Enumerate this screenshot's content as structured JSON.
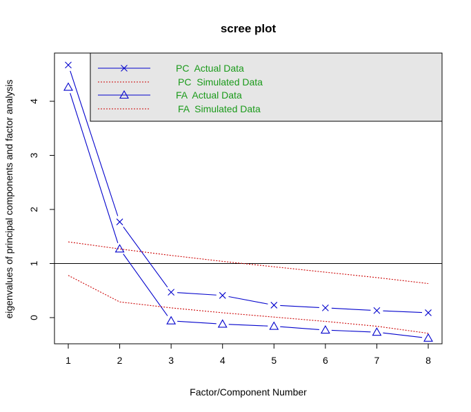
{
  "chart_data": {
    "type": "line",
    "title": "scree plot",
    "xlabel": "Factor/Component Number",
    "ylabel": "eigenvalues of principal components and factor analysis",
    "x": [
      1,
      2,
      3,
      4,
      5,
      6,
      7,
      8
    ],
    "xlim": [
      1,
      8
    ],
    "ylim": [
      -0.5,
      4.75
    ],
    "xticks": [
      "1",
      "2",
      "3",
      "4",
      "5",
      "6",
      "7",
      "8"
    ],
    "yticks": [
      "0",
      "1",
      "2",
      "3",
      "4"
    ],
    "reference_line": {
      "y": 1,
      "color": "#000000"
    },
    "grid": false,
    "legend_position": "top-right",
    "legend_background": "#e6e6e6",
    "legend_text_color": "#1a9a1a",
    "series": [
      {
        "name": "PC  Actual Data",
        "values": [
          4.67,
          1.77,
          0.47,
          0.41,
          0.23,
          0.18,
          0.13,
          0.09
        ],
        "color": "#0000cc",
        "line": "solid",
        "marker": "x"
      },
      {
        "name": "PC  Simulated Data",
        "values": [
          1.4,
          1.27,
          1.15,
          1.04,
          0.94,
          0.84,
          0.74,
          0.63
        ],
        "color": "#cc0000",
        "line": "dotted",
        "marker": "none"
      },
      {
        "name": "FA  Actual Data",
        "values": [
          4.26,
          1.27,
          -0.06,
          -0.12,
          -0.16,
          -0.23,
          -0.27,
          -0.38
        ],
        "color": "#0000cc",
        "line": "solid",
        "marker": "triangle"
      },
      {
        "name": "FA  Simulated Data",
        "values": [
          0.78,
          0.29,
          0.18,
          0.09,
          0.01,
          -0.07,
          -0.16,
          -0.29
        ],
        "color": "#cc0000",
        "line": "dotted",
        "marker": "none"
      }
    ]
  }
}
